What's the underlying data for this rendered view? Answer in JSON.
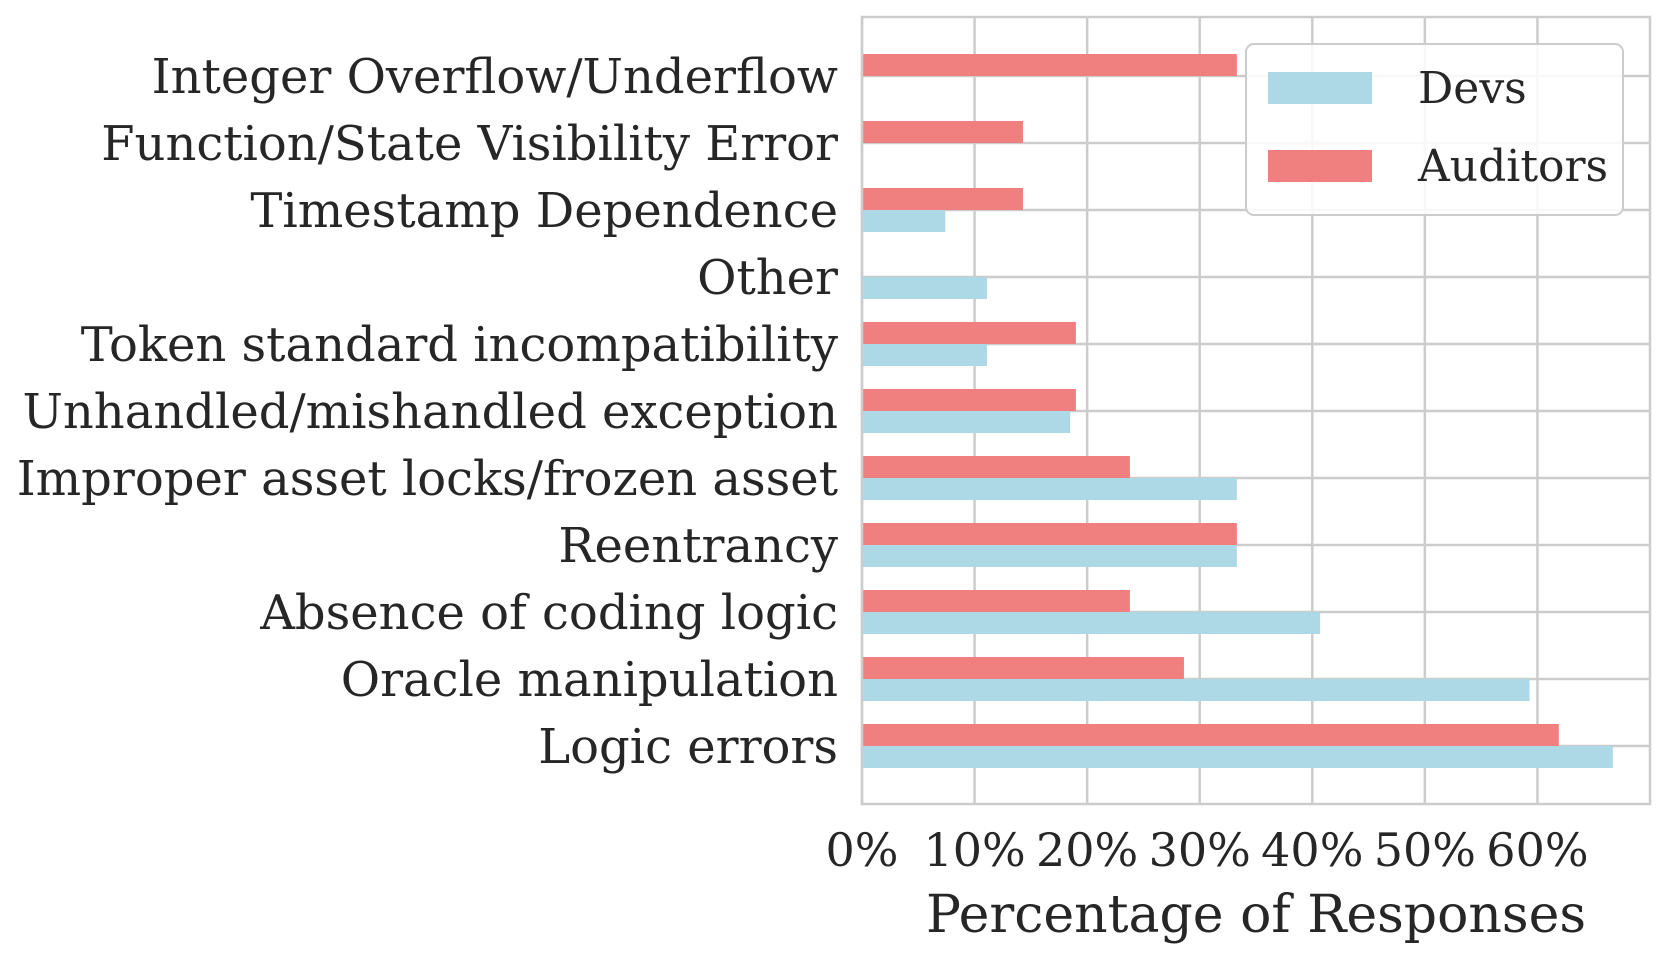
{
  "chart_data": {
    "type": "bar",
    "orientation": "horizontal",
    "title": "",
    "xlabel": "Percentage of Responses",
    "ylabel": "",
    "xlim": [
      0,
      70
    ],
    "x_ticks": [
      {
        "value": 0,
        "label": "0%"
      },
      {
        "value": 10,
        "label": "10%"
      },
      {
        "value": 20,
        "label": "20%"
      },
      {
        "value": 30,
        "label": "30%"
      },
      {
        "value": 40,
        "label": "40%"
      },
      {
        "value": 50,
        "label": "50%"
      },
      {
        "value": 60,
        "label": "60%"
      }
    ],
    "grid": true,
    "legend_position": "top-right",
    "categories": [
      "Integer Overflow/Underflow",
      "Function/State Visibility Error",
      "Timestamp Dependence",
      "Other",
      "Token standard incompatibility",
      "Unhandled/mishandled exception",
      "Improper asset locks/frozen asset",
      "Reentrancy",
      "Absence of coding logic",
      "Oracle manipulation",
      "Logic errors"
    ],
    "series": [
      {
        "name": "Devs",
        "color": "#add8e6",
        "values": [
          0,
          0,
          7.4,
          11.1,
          11.1,
          18.5,
          33.3,
          33.3,
          40.7,
          59.3,
          66.7
        ]
      },
      {
        "name": "Auditors",
        "color": "#f08080",
        "values": [
          33.3,
          14.3,
          14.3,
          0,
          19.0,
          19.0,
          23.8,
          33.3,
          23.8,
          28.6,
          61.9
        ]
      }
    ]
  }
}
